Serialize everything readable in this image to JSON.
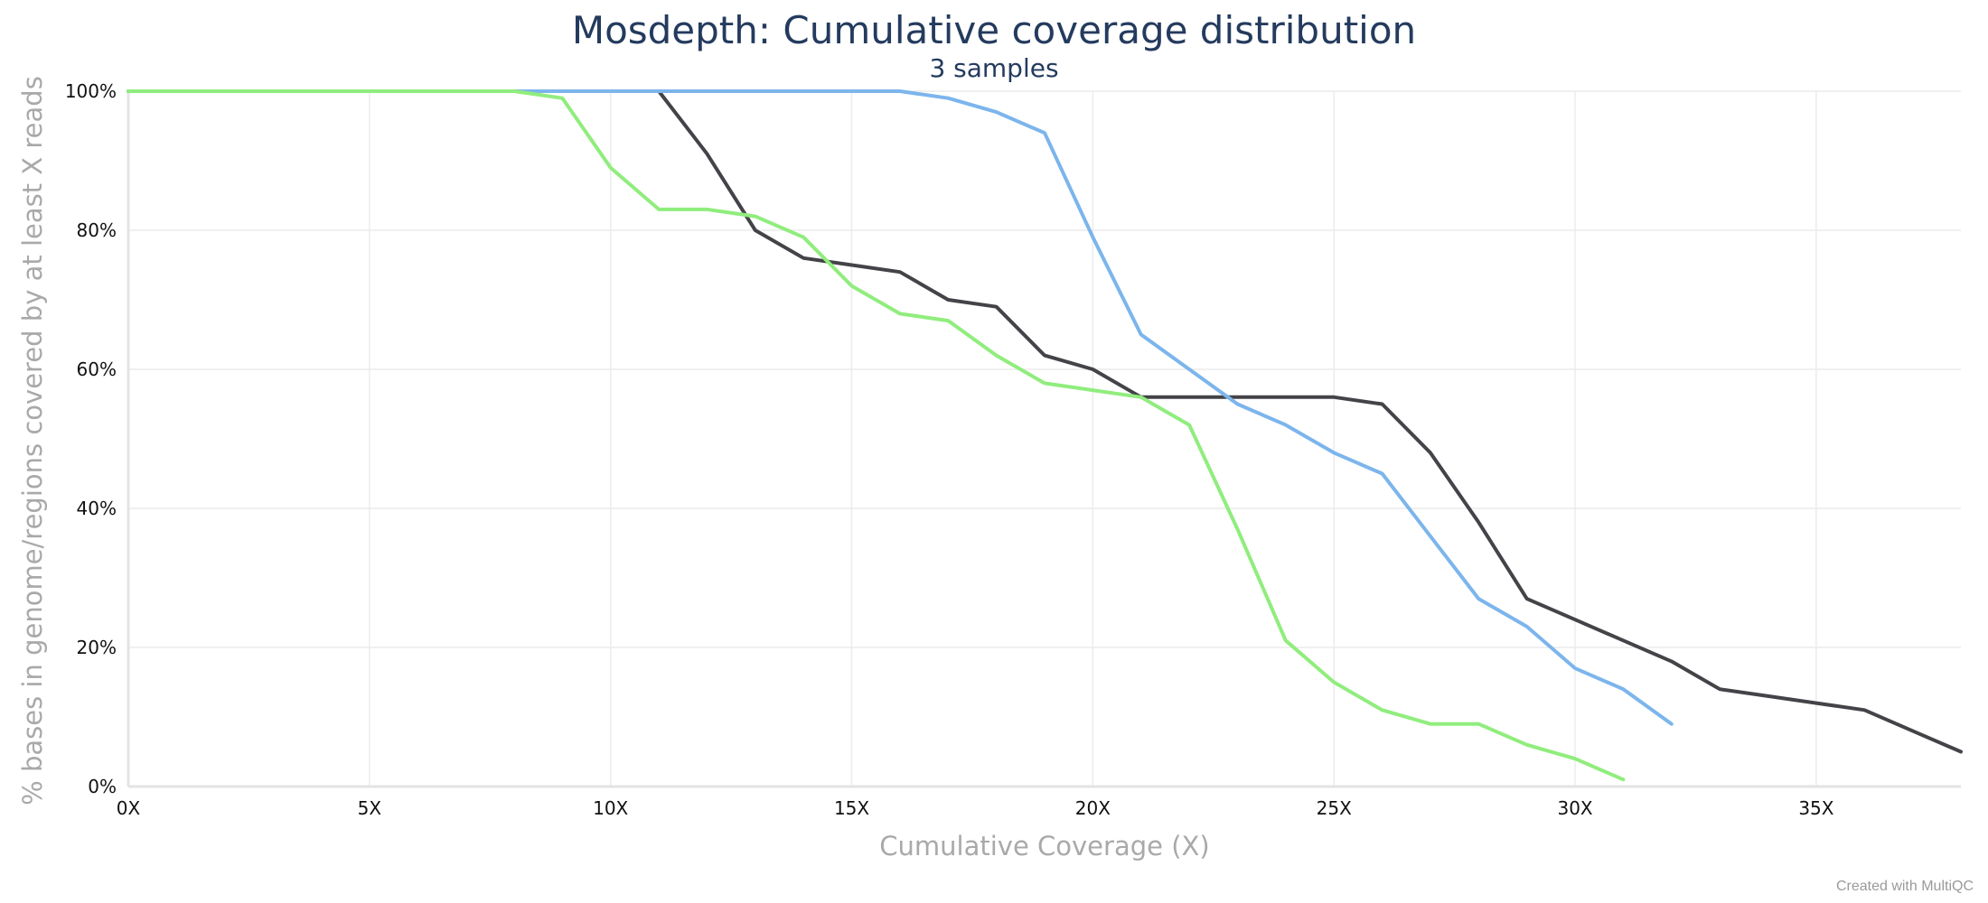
{
  "chart_data": {
    "type": "line",
    "title": "Mosdepth: Cumulative coverage distribution",
    "subtitle": "3 samples",
    "xlabel": "Cumulative Coverage (X)",
    "ylabel": "% bases in genome/regions covered by at least X reads",
    "xlim": [
      0,
      38
    ],
    "ylim": [
      0,
      100
    ],
    "x_ticks": [
      0,
      5,
      10,
      15,
      20,
      25,
      30,
      35
    ],
    "x_tick_labels": [
      "0X",
      "5X",
      "10X",
      "15X",
      "20X",
      "25X",
      "30X",
      "35X"
    ],
    "y_ticks": [
      0,
      20,
      40,
      60,
      80,
      100
    ],
    "y_tick_labels": [
      "0%",
      "20%",
      "40%",
      "60%",
      "80%",
      "100%"
    ],
    "grid": true,
    "series": [
      {
        "color": "#434348",
        "x": [
          0,
          9,
          10,
          11,
          12,
          13,
          14,
          15,
          16,
          17,
          18,
          19,
          20,
          21,
          22,
          23,
          24,
          25,
          26,
          27,
          28,
          29,
          30,
          31,
          32,
          33,
          34,
          35,
          36,
          37,
          38
        ],
        "y": [
          100,
          100,
          100,
          100,
          91,
          80,
          76,
          75,
          74,
          70,
          69,
          62,
          60,
          56,
          56,
          56,
          56,
          56,
          55,
          48,
          38,
          27,
          24,
          21,
          18,
          14,
          13,
          12,
          11,
          8,
          5
        ]
      },
      {
        "color": "#7cb5ec",
        "x": [
          0,
          16,
          17,
          18,
          19,
          20,
          21,
          22,
          23,
          24,
          25,
          26,
          27,
          28,
          29,
          30,
          31,
          32
        ],
        "y": [
          100,
          100,
          99,
          97,
          94,
          79,
          65,
          60,
          55,
          52,
          48,
          45,
          36,
          27,
          23,
          17,
          14,
          9
        ]
      },
      {
        "color": "#90ed7d",
        "x": [
          0,
          8,
          9,
          10,
          11,
          12,
          13,
          14,
          15,
          16,
          17,
          18,
          19,
          20,
          21,
          22,
          23,
          24,
          25,
          26,
          27,
          28,
          29,
          30,
          31
        ],
        "y": [
          100,
          100,
          99,
          89,
          83,
          83,
          82,
          79,
          72,
          68,
          67,
          62,
          58,
          57,
          56,
          52,
          37,
          21,
          15,
          11,
          9,
          9,
          6,
          4,
          1
        ]
      }
    ]
  },
  "credit": "Created with MultiQC"
}
